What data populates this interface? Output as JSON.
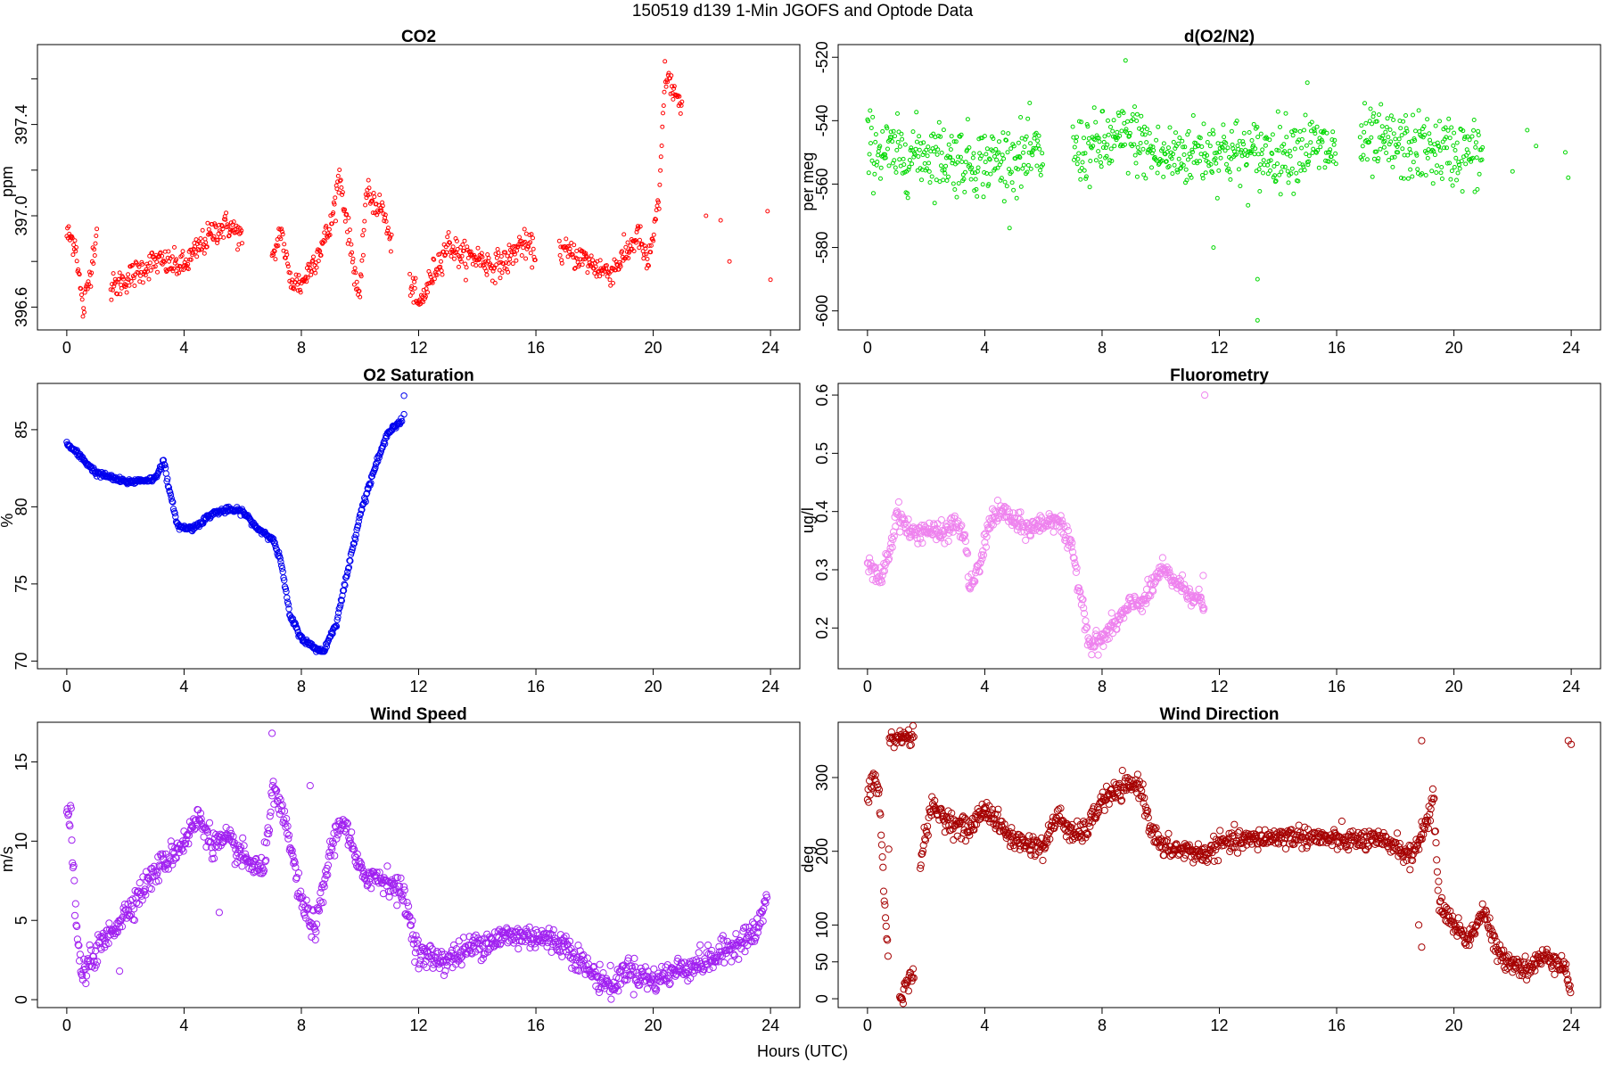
{
  "figure": {
    "suptitle": "150519   d139   1-Min  JGOFS and Optode Data",
    "xlabel": "Hours (UTC)"
  },
  "chart_data": [
    {
      "id": "co2",
      "type": "scatter",
      "title": "CO2",
      "ylabel": "ppm",
      "color": "#ff0000",
      "marker_radius": 2,
      "xlim": [
        -1,
        25
      ],
      "ylim": [
        396.5,
        397.75
      ],
      "xticks": [
        0,
        4,
        8,
        12,
        16,
        20,
        24
      ],
      "yticks": [
        396.6,
        397.0,
        397.4
      ],
      "ytick_labels": [
        "396.6",
        "397.0",
        "397.4"
      ],
      "ytick_minor": [
        396.8,
        397.2,
        397.6
      ],
      "keypoints": [
        [
          0,
          396.92
        ],
        [
          0.3,
          396.88
        ],
        [
          0.55,
          396.58
        ],
        [
          0.8,
          396.75
        ],
        [
          1.0,
          396.92
        ],
        [
          1.05,
          396.94
        ],
        [
          1.4,
          null
        ],
        [
          1.5,
          396.68
        ],
        [
          2.0,
          396.72
        ],
        [
          3.0,
          396.8
        ],
        [
          4.0,
          396.78
        ],
        [
          4.5,
          396.86
        ],
        [
          5.0,
          396.93
        ],
        [
          5.5,
          396.96
        ],
        [
          6.0,
          396.9
        ],
        [
          6.2,
          null
        ],
        [
          7.0,
          396.78
        ],
        [
          7.3,
          396.95
        ],
        [
          7.6,
          396.72
        ],
        [
          8.0,
          396.7
        ],
        [
          8.5,
          396.82
        ],
        [
          9.0,
          396.95
        ],
        [
          9.3,
          397.18
        ],
        [
          9.7,
          396.85
        ],
        [
          10.0,
          396.62
        ],
        [
          10.2,
          397.1
        ],
        [
          10.8,
          397.02
        ],
        [
          11.1,
          396.84
        ],
        [
          11.4,
          null
        ],
        [
          11.7,
          396.72
        ],
        [
          12.0,
          396.6
        ],
        [
          12.5,
          396.75
        ],
        [
          13.0,
          396.88
        ],
        [
          13.5,
          396.82
        ],
        [
          14.0,
          396.82
        ],
        [
          14.5,
          396.78
        ],
        [
          15.0,
          396.8
        ],
        [
          15.5,
          396.88
        ],
        [
          16.0,
          396.84
        ],
        [
          16.3,
          null
        ],
        [
          16.8,
          396.85
        ],
        [
          17.5,
          396.82
        ],
        [
          18.0,
          396.78
        ],
        [
          18.5,
          396.75
        ],
        [
          19.0,
          396.82
        ],
        [
          19.5,
          396.92
        ],
        [
          19.8,
          396.78
        ],
        [
          20.2,
          397.05
        ],
        [
          20.4,
          397.62
        ],
        [
          20.7,
          397.55
        ],
        [
          21.0,
          397.45
        ]
      ],
      "noise": 0.05,
      "extra_points": [
        [
          21.8,
          397.0
        ],
        [
          22.3,
          396.98
        ],
        [
          22.6,
          396.8
        ],
        [
          23.9,
          397.02
        ],
        [
          24.0,
          396.72
        ]
      ]
    },
    {
      "id": "o2n2",
      "type": "scatter",
      "title": "d(O2/N2)",
      "ylabel": "per meg",
      "color": "#00d800",
      "marker_radius": 2,
      "xlim": [
        -1,
        25
      ],
      "ylim": [
        -606,
        -516
      ],
      "xticks": [
        0,
        4,
        8,
        12,
        16,
        20,
        24
      ],
      "yticks": [
        -600,
        -580,
        -560,
        -540,
        -520
      ],
      "ytick_labels": [
        "-600",
        "-580",
        "-560",
        "-540",
        "-520"
      ],
      "keypoints": [
        [
          0,
          -548
        ],
        [
          1,
          -551
        ],
        [
          2,
          -550
        ],
        [
          3,
          -552
        ],
        [
          4,
          -553
        ],
        [
          5,
          -552
        ],
        [
          6,
          -551
        ],
        [
          6.3,
          null
        ],
        [
          7,
          -550
        ],
        [
          8,
          -548
        ],
        [
          9,
          -545
        ],
        [
          10,
          -552
        ],
        [
          11,
          -550
        ],
        [
          12,
          -549
        ],
        [
          13,
          -551
        ],
        [
          14,
          -550
        ],
        [
          15,
          -548
        ],
        [
          16,
          -550
        ],
        [
          16.3,
          null
        ],
        [
          16.8,
          -547
        ],
        [
          18,
          -548
        ],
        [
          19,
          -549
        ],
        [
          20,
          -550
        ],
        [
          21,
          -551
        ],
        [
          21.3,
          null
        ]
      ],
      "noise": 9,
      "extra_points": [
        [
          8.8,
          -521
        ],
        [
          9.2,
          -538
        ],
        [
          11.8,
          -580
        ],
        [
          13.3,
          -590
        ],
        [
          13.3,
          -603
        ],
        [
          15.0,
          -528
        ],
        [
          22.0,
          -556
        ],
        [
          22.5,
          -543
        ],
        [
          22.8,
          -548
        ],
        [
          23.8,
          -550
        ],
        [
          23.9,
          -558
        ]
      ]
    },
    {
      "id": "o2sat",
      "type": "scatter",
      "title": "O2 Saturation",
      "ylabel": "%",
      "color": "#0000ee",
      "marker_radius": 3.2,
      "xlim": [
        -1,
        25
      ],
      "ylim": [
        69.5,
        88
      ],
      "xticks": [
        0,
        4,
        8,
        12,
        16,
        20,
        24
      ],
      "yticks": [
        70,
        75,
        80,
        85
      ],
      "ytick_labels": [
        "70",
        "75",
        "80",
        "85"
      ],
      "keypoints": [
        [
          0,
          84.1
        ],
        [
          0.5,
          83.2
        ],
        [
          1.0,
          82.2
        ],
        [
          1.5,
          81.9
        ],
        [
          2.0,
          81.6
        ],
        [
          2.5,
          81.7
        ],
        [
          3.0,
          81.8
        ],
        [
          3.3,
          83.0
        ],
        [
          3.5,
          81.0
        ],
        [
          3.8,
          78.7
        ],
        [
          4.3,
          78.6
        ],
        [
          5.0,
          79.6
        ],
        [
          5.5,
          79.8
        ],
        [
          6.0,
          79.7
        ],
        [
          6.5,
          78.6
        ],
        [
          7.0,
          78.0
        ],
        [
          7.3,
          76.5
        ],
        [
          7.6,
          73.0
        ],
        [
          8.0,
          71.5
        ],
        [
          8.4,
          70.9
        ],
        [
          8.75,
          70.6
        ],
        [
          9.2,
          72.5
        ],
        [
          9.6,
          76.0
        ],
        [
          10.0,
          79.5
        ],
        [
          10.5,
          82.5
        ],
        [
          11.0,
          85.0
        ],
        [
          11.45,
          85.6
        ]
      ],
      "noise": 0.15,
      "extra_points": [
        [
          11.5,
          86.0
        ],
        [
          11.5,
          87.2
        ]
      ]
    },
    {
      "id": "fluor",
      "type": "scatter",
      "title": "Fluorometry",
      "ylabel": "ug/l",
      "color": "#ee82ee",
      "marker_radius": 3.6,
      "xlim": [
        -1,
        25
      ],
      "ylim": [
        0.13,
        0.62
      ],
      "xticks": [
        0,
        4,
        8,
        12,
        16,
        20,
        24
      ],
      "yticks": [
        0.2,
        0.3,
        0.4,
        0.5,
        0.6
      ],
      "ytick_labels": [
        "0.2",
        "0.3",
        "0.4",
        "0.5",
        "0.6"
      ],
      "keypoints": [
        [
          0,
          0.31
        ],
        [
          0.4,
          0.28
        ],
        [
          0.8,
          0.34
        ],
        [
          1.0,
          0.4
        ],
        [
          1.5,
          0.36
        ],
        [
          2.0,
          0.37
        ],
        [
          2.5,
          0.36
        ],
        [
          3.0,
          0.38
        ],
        [
          3.3,
          0.36
        ],
        [
          3.5,
          0.27
        ],
        [
          3.8,
          0.3
        ],
        [
          4.2,
          0.39
        ],
        [
          4.7,
          0.4
        ],
        [
          5.0,
          0.38
        ],
        [
          5.5,
          0.37
        ],
        [
          6.0,
          0.38
        ],
        [
          6.5,
          0.39
        ],
        [
          6.8,
          0.35
        ],
        [
          7.0,
          0.33
        ],
        [
          7.3,
          0.25
        ],
        [
          7.6,
          0.17
        ],
        [
          8.0,
          0.18
        ],
        [
          8.5,
          0.21
        ],
        [
          9.0,
          0.24
        ],
        [
          9.5,
          0.25
        ],
        [
          10.0,
          0.3
        ],
        [
          10.5,
          0.28
        ],
        [
          11.0,
          0.26
        ],
        [
          11.5,
          0.24
        ]
      ],
      "noise": 0.015,
      "extra_points": [
        [
          11.5,
          0.6
        ],
        [
          11.45,
          0.29
        ]
      ]
    },
    {
      "id": "windspd",
      "type": "scatter",
      "title": "Wind Speed",
      "ylabel": "m/s",
      "color": "#a020f0",
      "marker_radius": 3.6,
      "xlim": [
        -1,
        25
      ],
      "ylim": [
        -0.5,
        17.5
      ],
      "xticks": [
        0,
        4,
        8,
        12,
        16,
        20,
        24
      ],
      "yticks": [
        0,
        5,
        10,
        15
      ],
      "ytick_labels": [
        "0",
        "5",
        "10",
        "15"
      ],
      "keypoints": [
        [
          0,
          11.2
        ],
        [
          0.15,
          11.5
        ],
        [
          0.3,
          5.0
        ],
        [
          0.5,
          1.5
        ],
        [
          1.0,
          3.0
        ],
        [
          2.0,
          5.5
        ],
        [
          3.0,
          8.0
        ],
        [
          4.0,
          10.0
        ],
        [
          4.5,
          11.5
        ],
        [
          5.0,
          9.8
        ],
        [
          5.5,
          10.0
        ],
        [
          6.0,
          9.0
        ],
        [
          6.7,
          8.0
        ],
        [
          7.0,
          13.0
        ],
        [
          7.2,
          12.5
        ],
        [
          7.6,
          10.0
        ],
        [
          8.0,
          6.0
        ],
        [
          8.5,
          4.5
        ],
        [
          9.0,
          9.5
        ],
        [
          9.4,
          11.5
        ],
        [
          10.0,
          8.0
        ],
        [
          11.0,
          7.5
        ],
        [
          11.5,
          6.5
        ],
        [
          12.0,
          2.8
        ],
        [
          13.0,
          2.5
        ],
        [
          14.0,
          3.5
        ],
        [
          15.0,
          4.0
        ],
        [
          16.0,
          4.0
        ],
        [
          17.0,
          3.5
        ],
        [
          18.0,
          1.5
        ],
        [
          18.7,
          0.8
        ],
        [
          19.0,
          2.0
        ],
        [
          20.0,
          1.2
        ],
        [
          21.0,
          2.0
        ],
        [
          22.0,
          2.5
        ],
        [
          23.0,
          3.8
        ],
        [
          23.5,
          4.2
        ],
        [
          23.9,
          6.5
        ]
      ],
      "noise": 0.7,
      "extra_points": [
        [
          7.0,
          16.8
        ],
        [
          8.3,
          13.5
        ],
        [
          5.2,
          5.5
        ],
        [
          1.8,
          1.8
        ]
      ]
    },
    {
      "id": "winddir",
      "type": "scatter",
      "title": "Wind Direction",
      "ylabel": "deg",
      "color": "#a50000",
      "marker_radius": 3.6,
      "xlim": [
        -1,
        25
      ],
      "ylim": [
        -12,
        375
      ],
      "xticks": [
        0,
        4,
        8,
        12,
        16,
        20,
        24
      ],
      "yticks": [
        0,
        50,
        100,
        200,
        300
      ],
      "ytick_labels": [
        "0",
        "50",
        "100",
        "200",
        "300"
      ],
      "keypoints": [
        [
          0,
          270
        ],
        [
          0.2,
          300
        ],
        [
          0.4,
          280
        ],
        [
          0.55,
          150
        ],
        [
          0.7,
          60
        ],
        [
          0.75,
          350
        ],
        [
          1.2,
          355
        ],
        [
          1.6,
          355
        ],
        [
          1.65,
          null
        ],
        [
          1.1,
          5
        ],
        [
          1.4,
          20
        ],
        [
          1.6,
          40
        ],
        [
          1.7,
          null
        ],
        [
          1.8,
          190
        ],
        [
          2.2,
          260
        ],
        [
          3.0,
          235
        ],
        [
          3.5,
          230
        ],
        [
          4.0,
          260
        ],
        [
          4.5,
          235
        ],
        [
          5.0,
          215
        ],
        [
          6.0,
          205
        ],
        [
          6.5,
          250
        ],
        [
          7.0,
          220
        ],
        [
          7.5,
          230
        ],
        [
          8.0,
          270
        ],
        [
          8.5,
          280
        ],
        [
          9.0,
          290
        ],
        [
          9.3,
          290
        ],
        [
          9.6,
          240
        ],
        [
          10.0,
          205
        ],
        [
          11.0,
          200
        ],
        [
          11.5,
          195
        ],
        [
          12.0,
          210
        ],
        [
          13.0,
          215
        ],
        [
          14.0,
          220
        ],
        [
          15.0,
          220
        ],
        [
          16.0,
          215
        ],
        [
          17.0,
          215
        ],
        [
          18.0,
          210
        ],
        [
          18.5,
          190
        ],
        [
          19.0,
          230
        ],
        [
          19.3,
          270
        ],
        [
          19.5,
          130
        ],
        [
          20.0,
          100
        ],
        [
          20.5,
          80
        ],
        [
          21.0,
          120
        ],
        [
          21.5,
          60
        ],
        [
          22.0,
          50
        ],
        [
          22.5,
          40
        ],
        [
          23.0,
          55
        ],
        [
          23.5,
          55
        ],
        [
          23.8,
          40
        ],
        [
          24.0,
          10
        ]
      ],
      "noise": 12,
      "extra_points": [
        [
          18.9,
          350
        ],
        [
          23.9,
          350
        ],
        [
          24.0,
          345
        ],
        [
          18.9,
          240
        ],
        [
          18.8,
          100
        ],
        [
          18.9,
          70
        ]
      ]
    }
  ]
}
